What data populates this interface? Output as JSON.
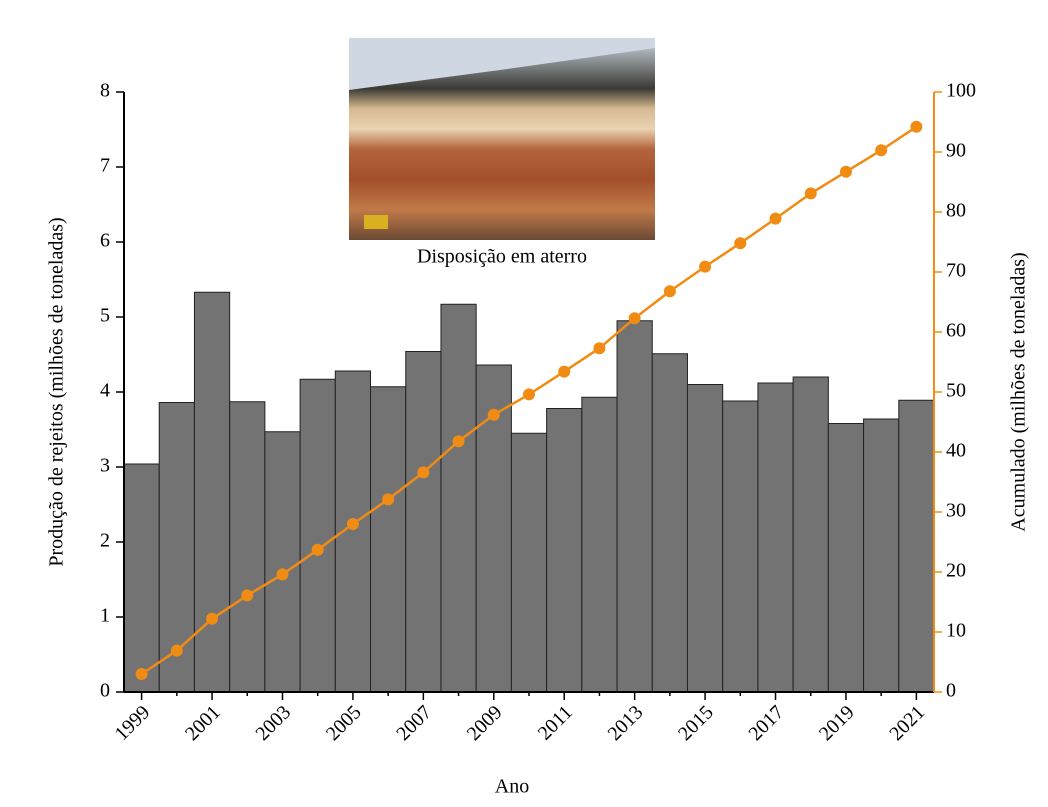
{
  "chart_data": {
    "type": "bar",
    "inset_caption": "Disposição em aterro",
    "xlabel": "Ano",
    "ylabel": "Produção de rejeitos (milhões de toneladas)",
    "y2label": "Acumulado (milhões de toneladas)",
    "categories": [
      "1999",
      null,
      "2001",
      null,
      "2003",
      null,
      "2005",
      null,
      "2007",
      null,
      "2009",
      null,
      "2011",
      null,
      "2013",
      null,
      "2015",
      null,
      "2017",
      null,
      "2019",
      null,
      "2021"
    ],
    "series": [
      {
        "type": "bar",
        "color": "#737373",
        "values": [
          3.04,
          3.86,
          5.33,
          3.87,
          3.47,
          4.17,
          4.28,
          4.07,
          4.54,
          5.17,
          4.36,
          3.45,
          3.78,
          3.93,
          4.95,
          4.51,
          4.1,
          3.88,
          4.12,
          4.2,
          3.58,
          3.64,
          3.89
        ]
      },
      {
        "type": "line",
        "axis": "y2",
        "color": "#f08c14",
        "values": [
          3.0,
          6.9,
          12.2,
          16.1,
          19.6,
          23.7,
          28.0,
          32.1,
          36.6,
          41.8,
          46.2,
          49.6,
          53.4,
          57.3,
          62.3,
          66.8,
          70.9,
          74.8,
          78.9,
          83.1,
          86.7,
          90.3,
          94.2
        ]
      }
    ],
    "ylim": [
      0,
      8
    ],
    "yticks": [
      0,
      1,
      2,
      3,
      4,
      5,
      6,
      7,
      8
    ],
    "y2lim": [
      0,
      100
    ],
    "y2ticks": [
      0,
      10,
      20,
      30,
      40,
      50,
      60,
      70,
      80,
      90,
      100
    ],
    "y2color": "#f08c14"
  }
}
